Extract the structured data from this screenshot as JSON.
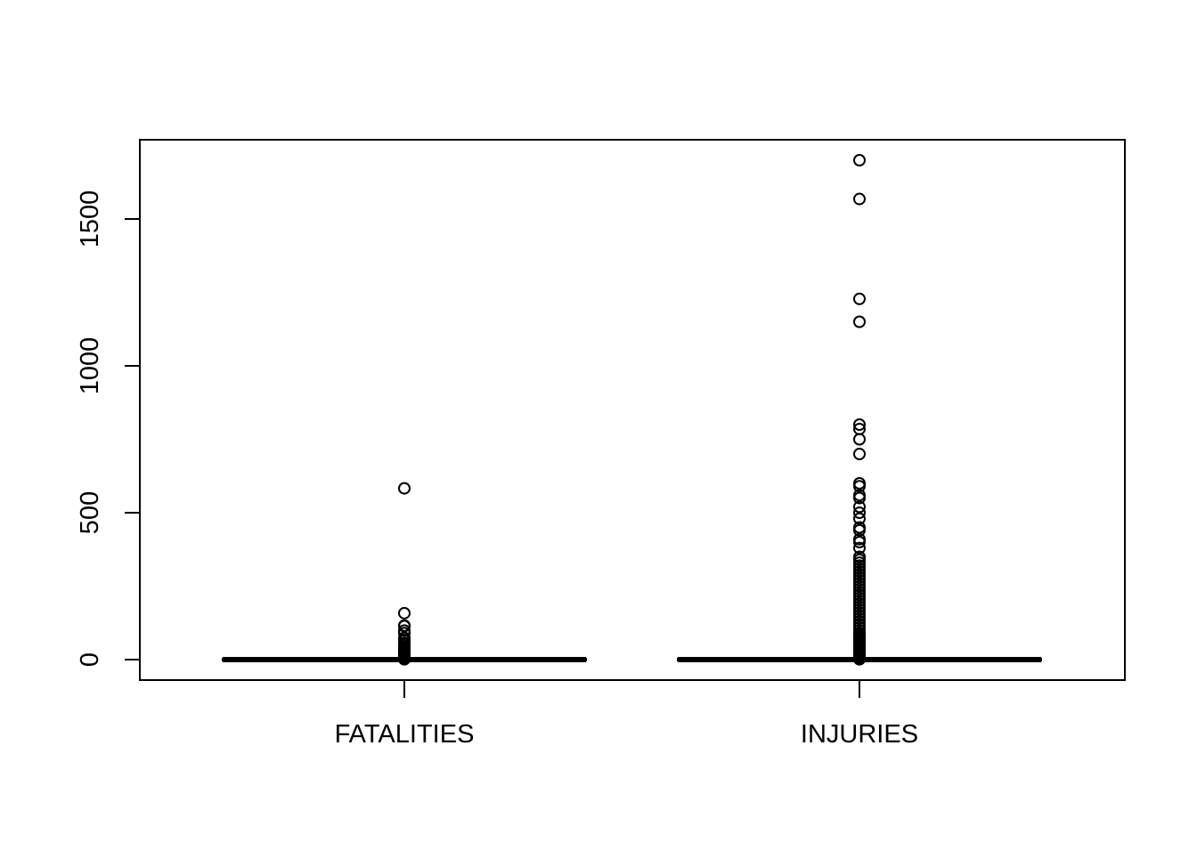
{
  "chart_data": {
    "type": "boxplot",
    "title": "",
    "xlabel": "",
    "ylabel": "",
    "ylim": [
      -70,
      1770
    ],
    "y_ticks": [
      0,
      500,
      1000,
      1500
    ],
    "y_tick_labels": [
      "0",
      "500",
      "1000",
      "1500"
    ],
    "grid": false,
    "categories": [
      "FATALITIES",
      "INJURIES"
    ],
    "boxes": [
      {
        "category": "FATALITIES",
        "min": 0,
        "q1": 0,
        "median": 0,
        "q3": 0,
        "max": 0,
        "outliers": [
          1,
          2,
          3,
          4,
          5,
          6,
          7,
          8,
          9,
          10,
          12,
          14,
          16,
          18,
          20,
          22,
          25,
          28,
          30,
          33,
          36,
          40,
          44,
          50,
          57,
          67,
          74,
          90,
          99,
          114,
          116,
          158,
          583
        ]
      },
      {
        "category": "INJURIES",
        "min": 0,
        "q1": 0,
        "median": 0,
        "q3": 0,
        "max": 0,
        "outliers": [
          1,
          3,
          5,
          8,
          10,
          15,
          20,
          25,
          30,
          35,
          40,
          45,
          50,
          55,
          60,
          65,
          70,
          75,
          80,
          85,
          90,
          100,
          110,
          120,
          130,
          140,
          150,
          160,
          170,
          180,
          190,
          200,
          210,
          220,
          230,
          240,
          250,
          260,
          270,
          280,
          290,
          300,
          310,
          320,
          330,
          340,
          350,
          380,
          400,
          410,
          440,
          450,
          480,
          500,
          520,
          550,
          560,
          590,
          600,
          700,
          750,
          785,
          800,
          1150,
          1228,
          1568,
          1700
        ]
      }
    ]
  }
}
